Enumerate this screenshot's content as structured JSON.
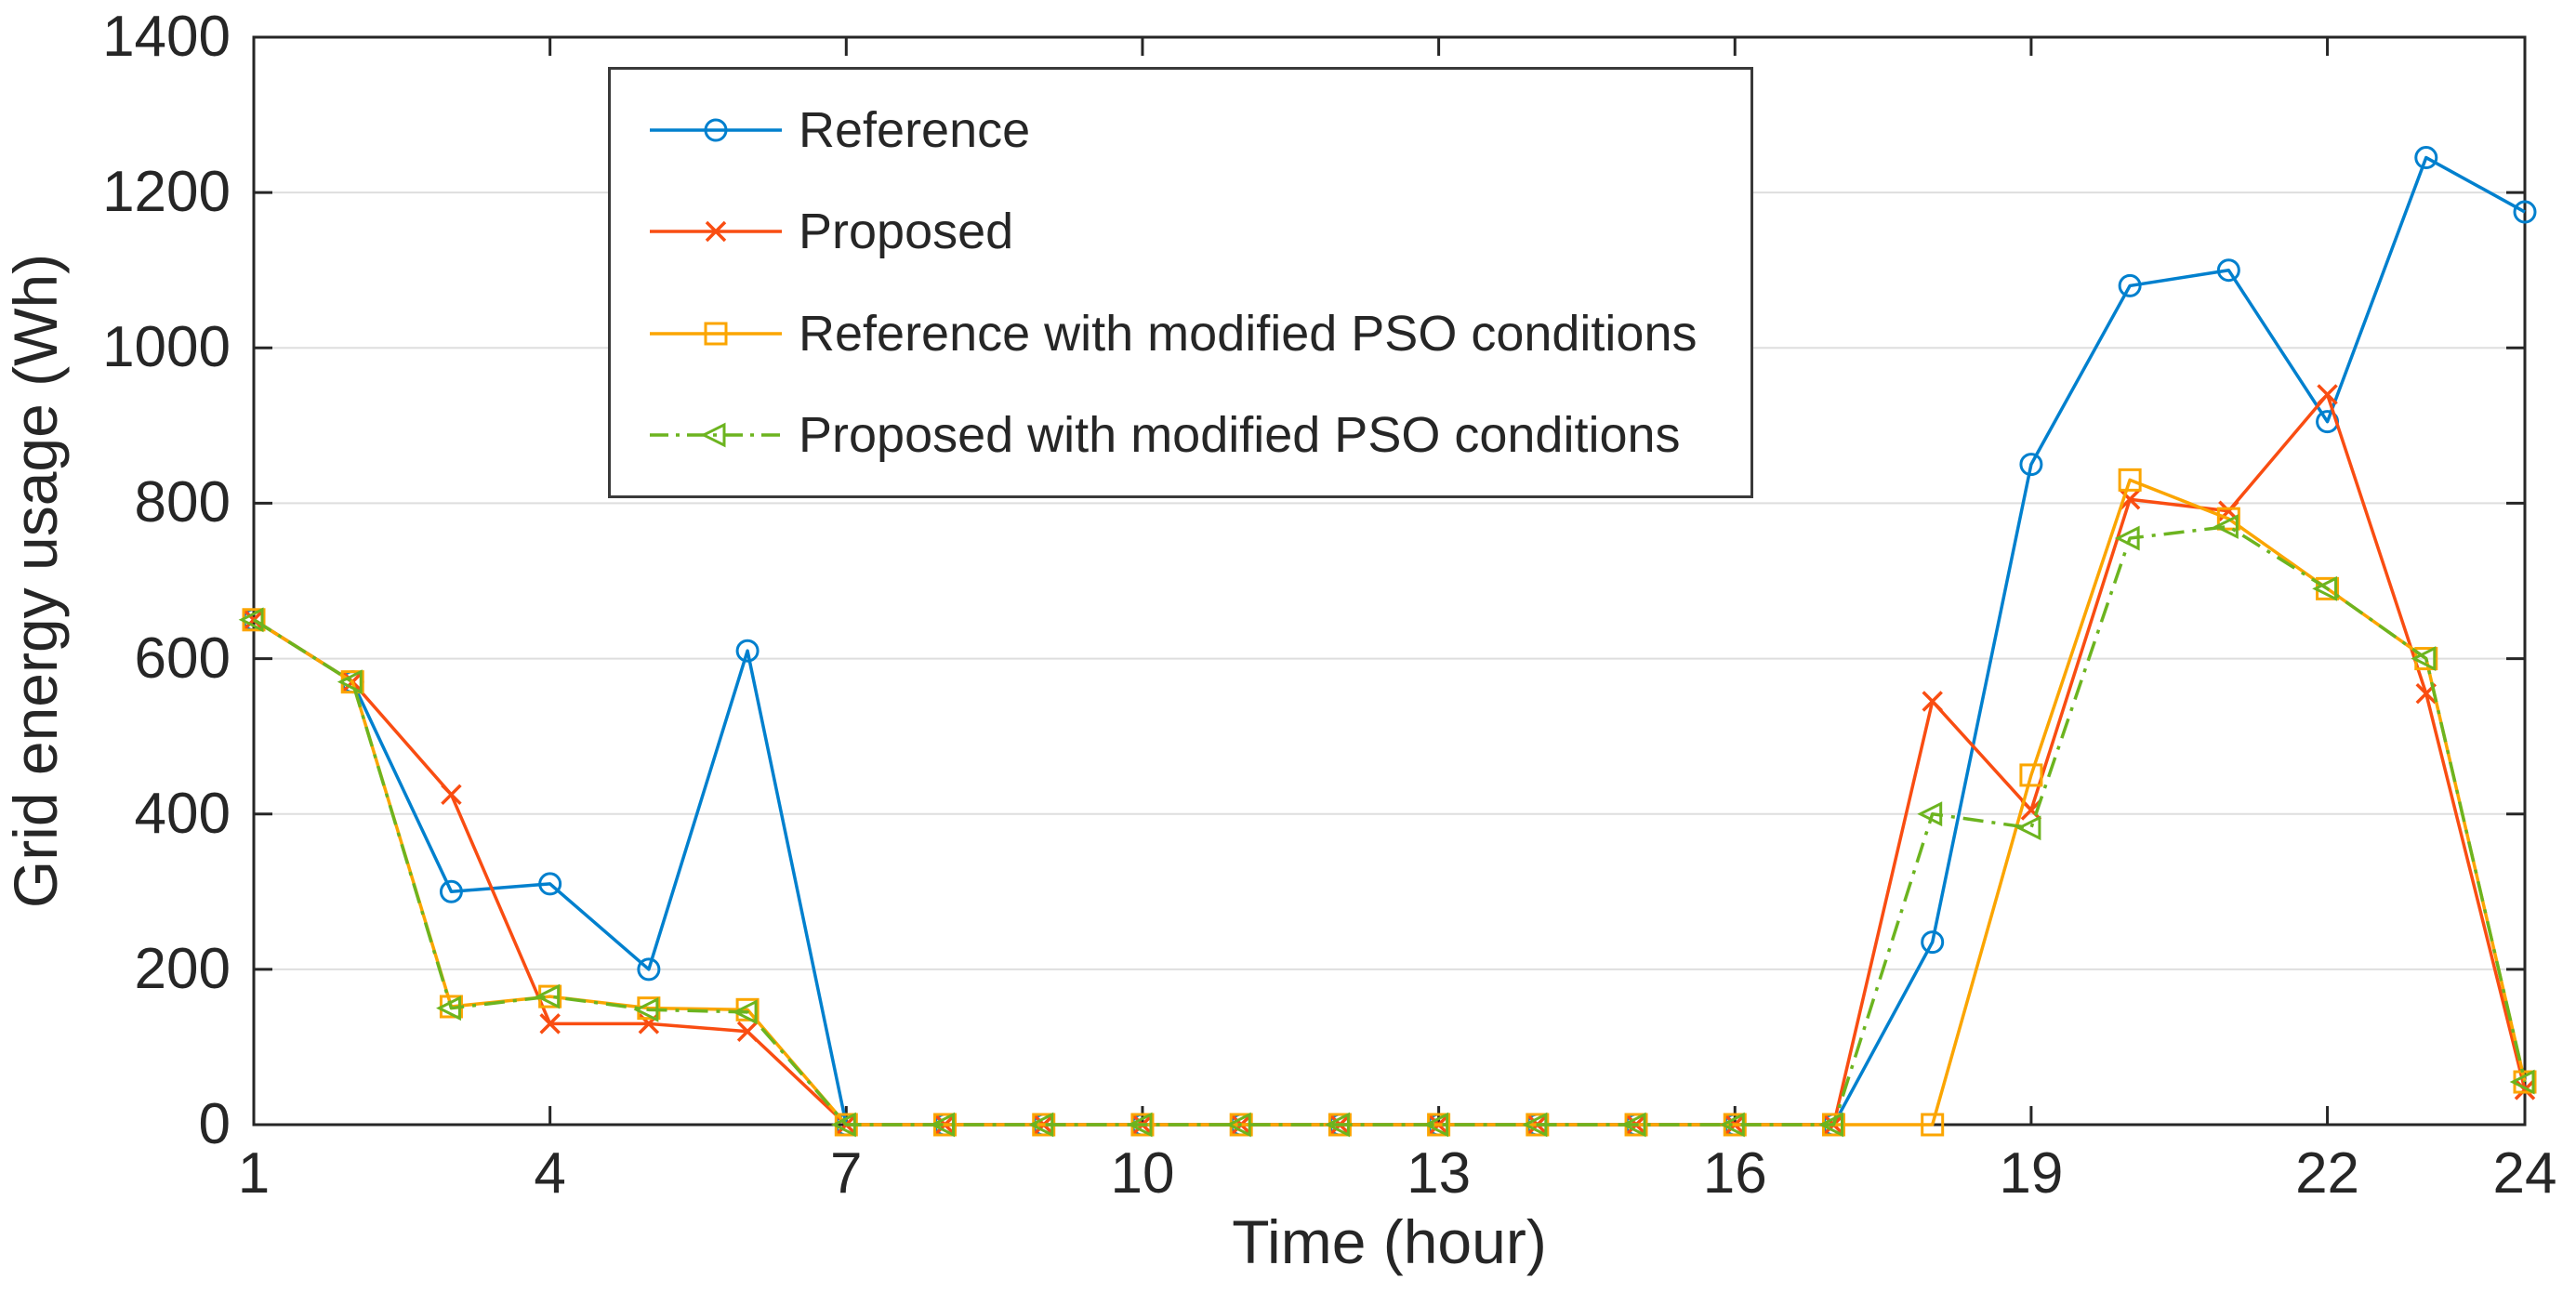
{
  "chart_data": {
    "type": "line",
    "title": "",
    "xlabel": "Time (hour)",
    "ylabel": "Grid energy usage (Wh)",
    "x": [
      1,
      2,
      3,
      4,
      5,
      6,
      7,
      8,
      9,
      10,
      11,
      12,
      13,
      14,
      15,
      16,
      17,
      18,
      19,
      20,
      21,
      22,
      23,
      24
    ],
    "x_tick_labels": [
      1,
      4,
      7,
      10,
      13,
      16,
      19,
      22,
      24
    ],
    "y_tick_labels": [
      0,
      200,
      400,
      600,
      800,
      1000,
      1200,
      1400
    ],
    "xlim": [
      1,
      24
    ],
    "ylim": [
      0,
      1400
    ],
    "grid": "horizontal-only",
    "grid_color": "#dedede",
    "axis_color": "#262626",
    "legend_position": "upper-left-inside",
    "series": [
      {
        "name": "Reference",
        "color": "#0080CE",
        "marker": "circle",
        "line_style": "solid",
        "values": [
          650,
          570,
          300,
          310,
          200,
          610,
          0,
          0,
          0,
          0,
          0,
          0,
          0,
          0,
          0,
          0,
          0,
          235,
          850,
          1080,
          1100,
          905,
          1245,
          1175
        ]
      },
      {
        "name": "Proposed",
        "color": "#F94D12",
        "marker": "x",
        "line_style": "solid",
        "values": [
          650,
          570,
          425,
          130,
          130,
          120,
          0,
          0,
          0,
          0,
          0,
          0,
          0,
          0,
          0,
          0,
          0,
          545,
          405,
          805,
          790,
          940,
          555,
          45
        ]
      },
      {
        "name": "Reference with modified PSO conditions",
        "color": "#FBA500",
        "marker": "square",
        "line_style": "solid",
        "values": [
          650,
          570,
          152,
          165,
          150,
          148,
          0,
          0,
          0,
          0,
          0,
          0,
          0,
          0,
          0,
          0,
          0,
          0,
          450,
          830,
          780,
          690,
          600,
          55
        ]
      },
      {
        "name": "Proposed with modified PSO conditions",
        "color": "#6CB41F",
        "marker": "triangle-left",
        "line_style": "dash-dot",
        "values": [
          650,
          570,
          150,
          165,
          148,
          145,
          0,
          0,
          0,
          0,
          0,
          0,
          0,
          0,
          0,
          0,
          0,
          400,
          382,
          755,
          770,
          690,
          600,
          55
        ]
      }
    ]
  }
}
